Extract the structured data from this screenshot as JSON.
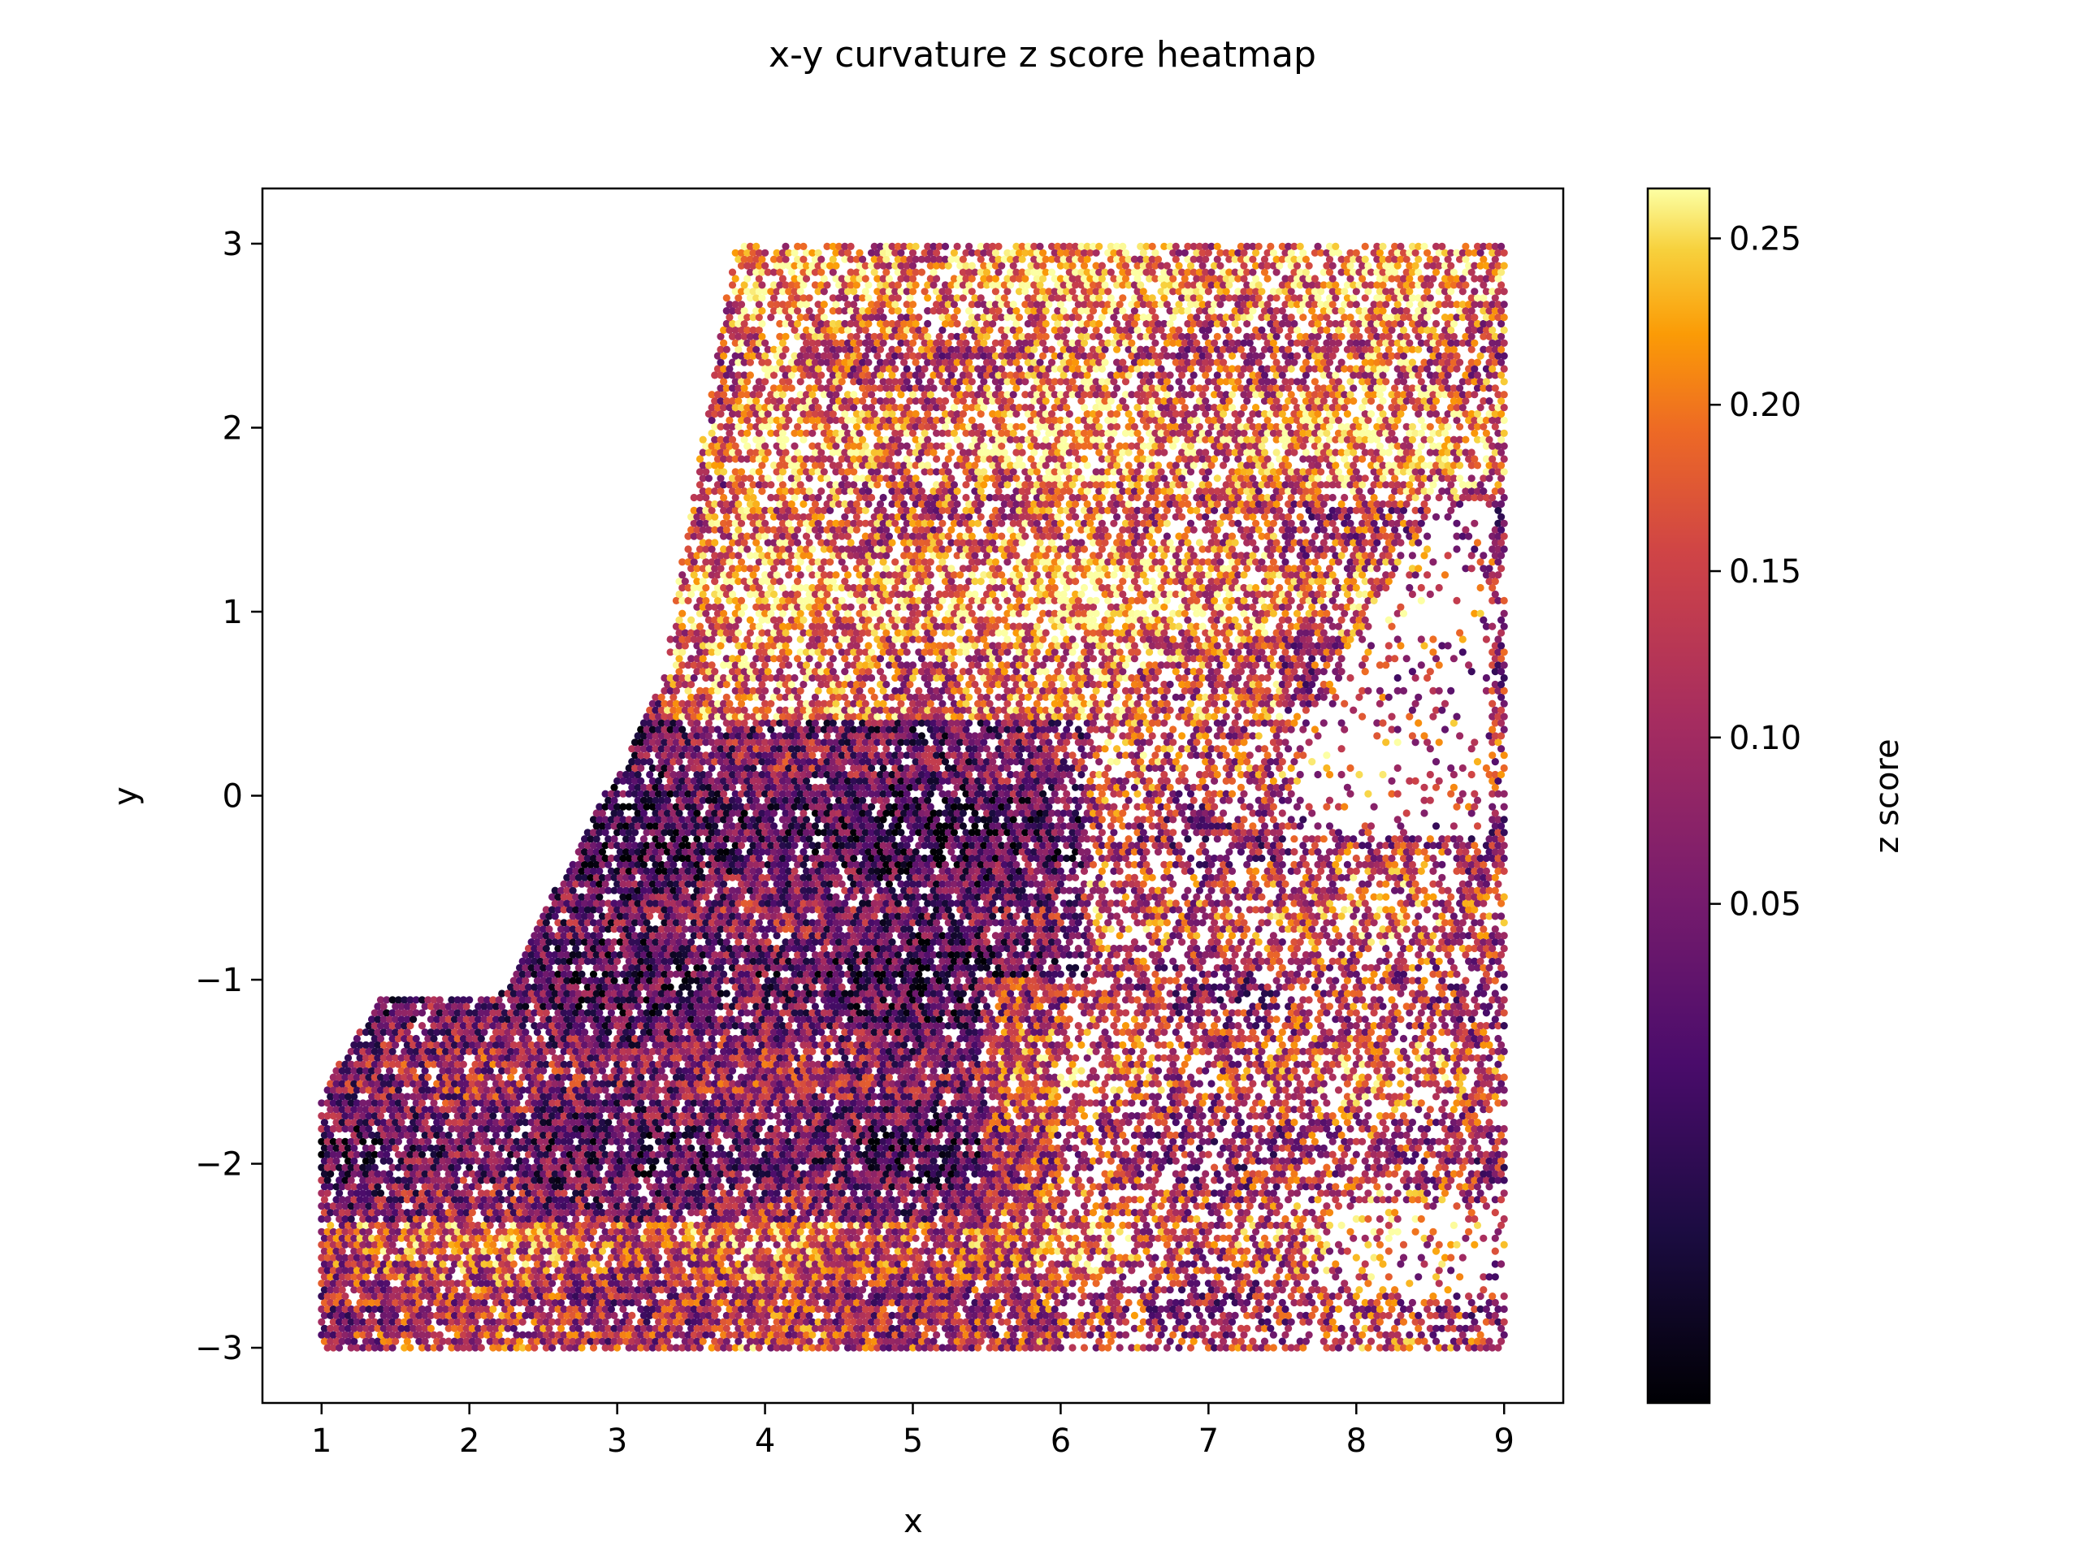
{
  "chart_data": {
    "type": "heatmap",
    "title": "x-y curvature z score heatmap",
    "xlabel": "x",
    "ylabel": "y",
    "xlim": [
      0.6,
      9.4
    ],
    "ylim": [
      -3.3,
      3.3
    ],
    "x_ticks": [
      {
        "value": 1,
        "label": "1"
      },
      {
        "value": 2,
        "label": "2"
      },
      {
        "value": 3,
        "label": "3"
      },
      {
        "value": 4,
        "label": "4"
      },
      {
        "value": 5,
        "label": "5"
      },
      {
        "value": 6,
        "label": "6"
      },
      {
        "value": 7,
        "label": "7"
      },
      {
        "value": 8,
        "label": "8"
      },
      {
        "value": 9,
        "label": "9"
      }
    ],
    "y_ticks": [
      {
        "value": 3,
        "label": "3"
      },
      {
        "value": 2,
        "label": "2"
      },
      {
        "value": 1,
        "label": "1"
      },
      {
        "value": 0,
        "label": "0"
      },
      {
        "value": -1,
        "label": "−1"
      },
      {
        "value": -2,
        "label": "−2"
      },
      {
        "value": -3,
        "label": "−3"
      }
    ],
    "grid": false,
    "colormap": "inferno",
    "colorbar": {
      "label": "z score",
      "range": [
        -0.1,
        0.265
      ],
      "ticks": [
        {
          "value": 0.25,
          "label": "0.25"
        },
        {
          "value": 0.2,
          "label": "0.20"
        },
        {
          "value": 0.15,
          "label": "0.15"
        },
        {
          "value": 0.1,
          "label": "0.10"
        },
        {
          "value": 0.05,
          "label": "0.05"
        }
      ]
    },
    "regions": [
      {
        "x": [
          3.8,
          9.0
        ],
        "y": [
          1.6,
          3.0
        ],
        "mean": 0.17
      },
      {
        "x": [
          3.3,
          7.5
        ],
        "y": [
          0.4,
          1.6
        ],
        "mean": 0.18
      },
      {
        "x": [
          7.5,
          9.0
        ],
        "y": [
          -0.6,
          1.4
        ],
        "mean": 0.12
      },
      {
        "x": [
          2.3,
          6.2
        ],
        "y": [
          -1.0,
          0.4
        ],
        "mean": 0.02
      },
      {
        "x": [
          6.0,
          9.0
        ],
        "y": [
          -2.2,
          -0.6
        ],
        "mean": 0.12
      },
      {
        "x": [
          1.0,
          5.5
        ],
        "y": [
          -2.3,
          -1.0
        ],
        "mean": 0.05
      },
      {
        "x": [
          1.0,
          9.0
        ],
        "y": [
          -3.0,
          -2.3
        ],
        "mean": 0.13
      }
    ]
  }
}
